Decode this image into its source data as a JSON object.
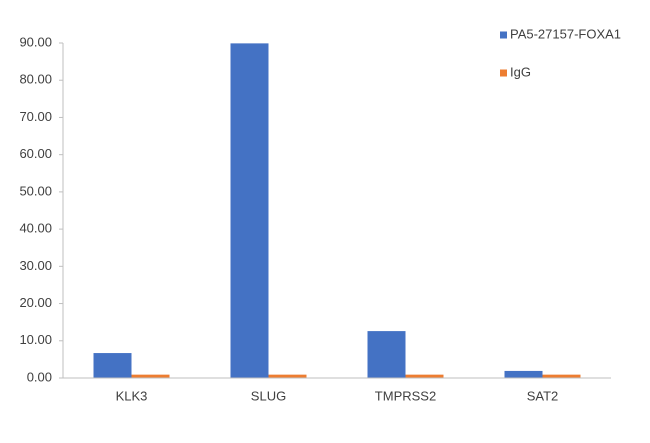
{
  "chart_data": {
    "type": "bar",
    "categories": [
      "KLK3",
      "SLUG",
      "TMPRSS2",
      "SAT2"
    ],
    "series": [
      {
        "name": "PA5-27157-FOXA1",
        "color": "#4472c4",
        "values": [
          6.7,
          89.9,
          12.6,
          1.9
        ]
      },
      {
        "name": "IgG",
        "color": "#ed7d31",
        "values": [
          0.9,
          0.9,
          0.9,
          0.9
        ]
      }
    ],
    "ylim": [
      0,
      90
    ],
    "yticks": [
      {
        "value": 0,
        "label": "0.00"
      },
      {
        "value": 10,
        "label": "10.00"
      },
      {
        "value": 20,
        "label": "20.00"
      },
      {
        "value": 30,
        "label": "30.00"
      },
      {
        "value": 40,
        "label": "40.00"
      },
      {
        "value": 50,
        "label": "50.00"
      },
      {
        "value": 60,
        "label": "60.00"
      },
      {
        "value": 70,
        "label": "70.00"
      },
      {
        "value": 80,
        "label": "80.00"
      },
      {
        "value": 90,
        "label": "90.00"
      }
    ],
    "legend": "top-right"
  }
}
